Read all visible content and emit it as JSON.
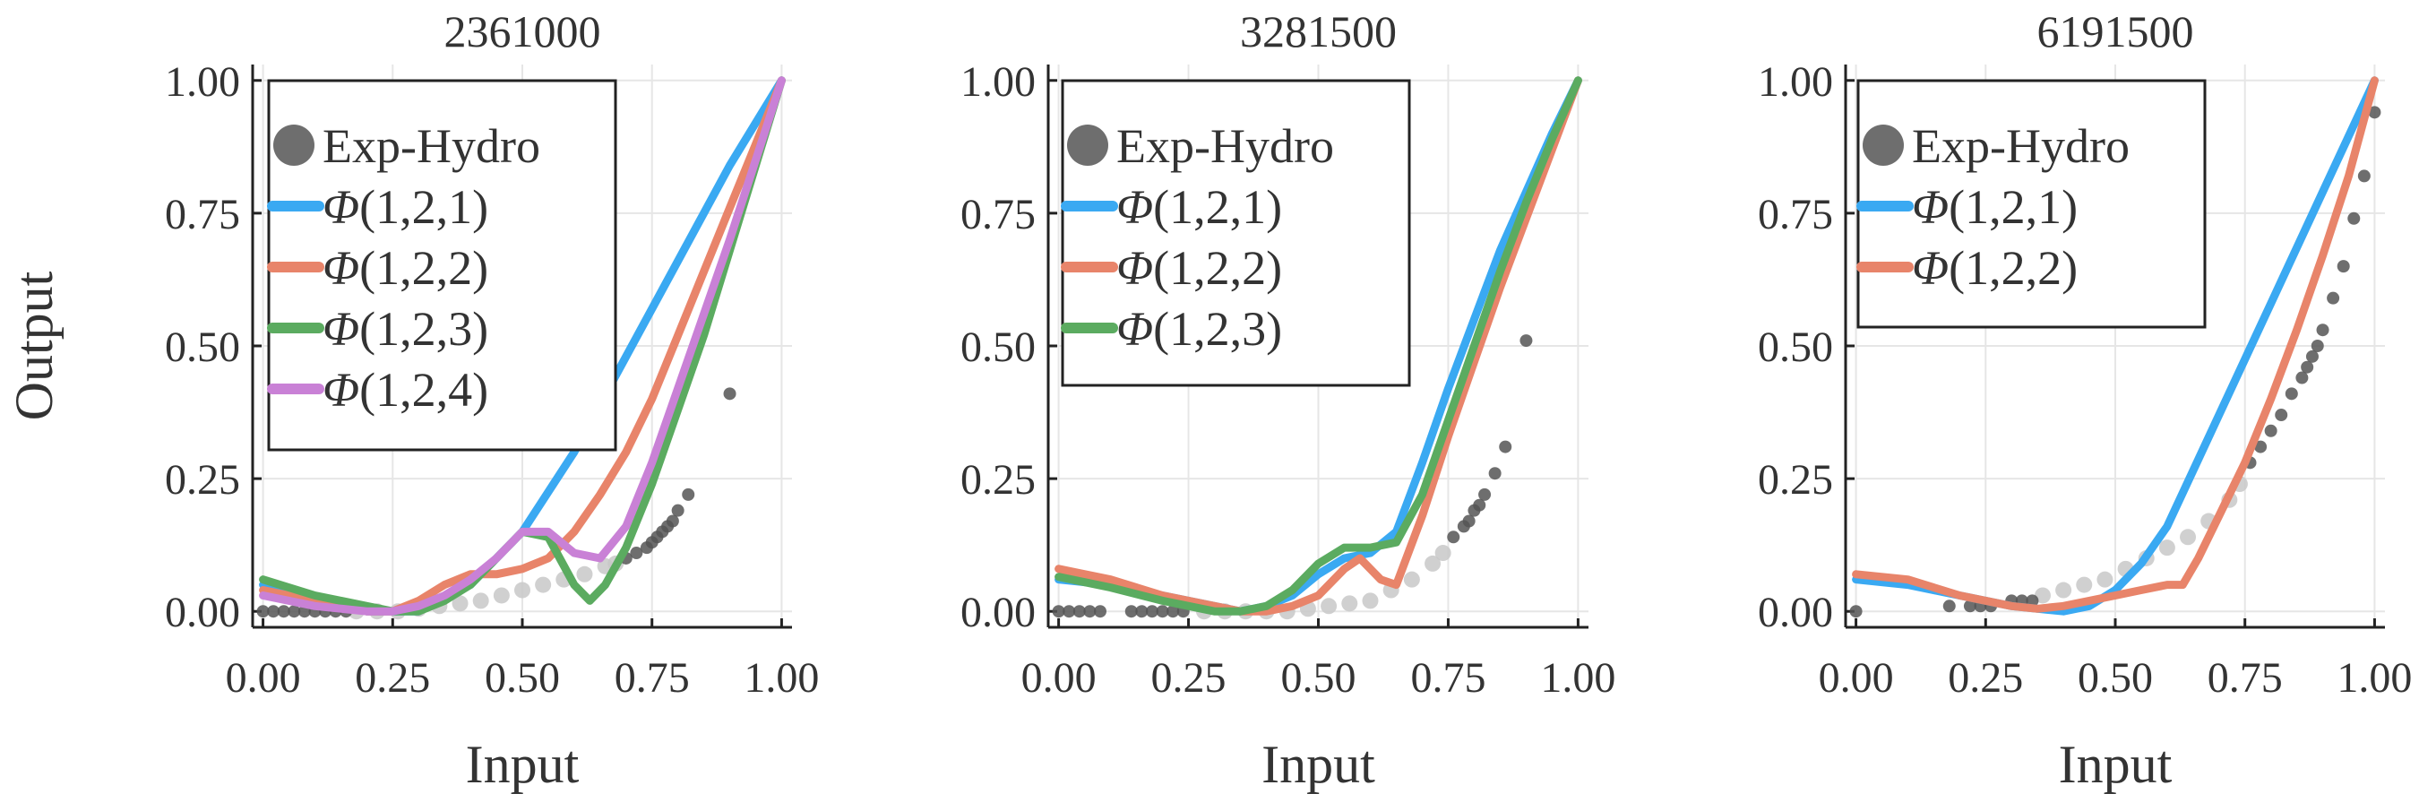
{
  "chart_data": [
    {
      "type": "line",
      "title": "2361000",
      "xlabel": "Input",
      "ylabel": "Output",
      "xlim": [
        -0.02,
        1.02
      ],
      "ylim": [
        -0.03,
        1.03
      ],
      "x_ticks": [
        "0.00",
        "0.25",
        "0.50",
        "0.75",
        "1.00"
      ],
      "y_ticks": [
        "0.00",
        "0.25",
        "0.50",
        "0.75",
        "1.00"
      ],
      "grid": true,
      "legend_position": "top-left",
      "legend": [
        "Exp-Hydro",
        "Φ(1,2,1)",
        "Φ(1,2,2)",
        "Φ(1,2,3)",
        "Φ(1,2,4)"
      ],
      "scatter": {
        "name": "Exp-Hydro",
        "color": "#555555",
        "dark_x": [
          0.0,
          0.02,
          0.04,
          0.06,
          0.08,
          0.1,
          0.12,
          0.14,
          0.16,
          0.7,
          0.72,
          0.74,
          0.75,
          0.76,
          0.77,
          0.78,
          0.79,
          0.8,
          0.82,
          0.9
        ],
        "dark_y": [
          0.0,
          0.0,
          0.0,
          0.0,
          0.0,
          0.0,
          0.0,
          0.0,
          0.0,
          0.1,
          0.11,
          0.12,
          0.13,
          0.14,
          0.15,
          0.16,
          0.17,
          0.19,
          0.22,
          0.41
        ],
        "light_x": [
          0.18,
          0.22,
          0.26,
          0.3,
          0.34,
          0.38,
          0.42,
          0.46,
          0.5,
          0.54,
          0.58,
          0.62,
          0.66,
          0.68
        ],
        "light_y": [
          0.0,
          0.0,
          0.0,
          0.005,
          0.01,
          0.015,
          0.02,
          0.03,
          0.04,
          0.05,
          0.06,
          0.07,
          0.085,
          0.09
        ]
      },
      "series": [
        {
          "name": "Φ(1,2,1)",
          "color": "#3aa9f2",
          "x": [
            0.0,
            0.1,
            0.2,
            0.3,
            0.4,
            0.5,
            0.6,
            0.7,
            0.8,
            0.9,
            1.0
          ],
          "y": [
            0.05,
            0.02,
            0.0,
            0.0,
            0.05,
            0.15,
            0.3,
            0.48,
            0.66,
            0.84,
            1.0
          ]
        },
        {
          "name": "Φ(1,2,2)",
          "color": "#e8846a",
          "x": [
            0.0,
            0.1,
            0.2,
            0.25,
            0.3,
            0.35,
            0.4,
            0.45,
            0.5,
            0.55,
            0.6,
            0.65,
            0.7,
            0.75,
            0.8,
            0.85,
            0.9,
            0.95,
            1.0
          ],
          "y": [
            0.04,
            0.02,
            0.0,
            0.0,
            0.02,
            0.05,
            0.07,
            0.07,
            0.08,
            0.1,
            0.15,
            0.22,
            0.3,
            0.4,
            0.52,
            0.64,
            0.76,
            0.88,
            1.0
          ]
        },
        {
          "name": "Φ(1,2,3)",
          "color": "#5bab60",
          "x": [
            0.0,
            0.1,
            0.2,
            0.25,
            0.3,
            0.35,
            0.4,
            0.45,
            0.5,
            0.55,
            0.6,
            0.63,
            0.66,
            0.7,
            0.75,
            0.8,
            0.85,
            0.9,
            0.95,
            1.0
          ],
          "y": [
            0.06,
            0.03,
            0.01,
            0.0,
            0.0,
            0.02,
            0.05,
            0.1,
            0.15,
            0.14,
            0.05,
            0.02,
            0.05,
            0.12,
            0.24,
            0.38,
            0.52,
            0.68,
            0.84,
            1.0
          ]
        },
        {
          "name": "Φ(1,2,4)",
          "color": "#c981d6",
          "x": [
            0.0,
            0.1,
            0.2,
            0.25,
            0.3,
            0.35,
            0.4,
            0.45,
            0.5,
            0.55,
            0.6,
            0.65,
            0.7,
            0.75,
            0.8,
            0.85,
            0.9,
            0.95,
            1.0
          ],
          "y": [
            0.03,
            0.01,
            0.0,
            0.0,
            0.01,
            0.03,
            0.06,
            0.1,
            0.15,
            0.15,
            0.11,
            0.1,
            0.16,
            0.28,
            0.42,
            0.56,
            0.7,
            0.85,
            1.0
          ]
        }
      ]
    },
    {
      "type": "line",
      "title": "3281500",
      "xlabel": "Input",
      "ylabel": "",
      "xlim": [
        -0.02,
        1.02
      ],
      "ylim": [
        -0.03,
        1.03
      ],
      "x_ticks": [
        "0.00",
        "0.25",
        "0.50",
        "0.75",
        "1.00"
      ],
      "y_ticks": [
        "0.00",
        "0.25",
        "0.50",
        "0.75",
        "1.00"
      ],
      "grid": true,
      "legend_position": "top-left",
      "legend": [
        "Exp-Hydro",
        "Φ(1,2,1)",
        "Φ(1,2,2)",
        "Φ(1,2,3)"
      ],
      "scatter": {
        "name": "Exp-Hydro",
        "color": "#555555",
        "dark_x": [
          0.0,
          0.02,
          0.04,
          0.06,
          0.08,
          0.14,
          0.16,
          0.18,
          0.2,
          0.22,
          0.24,
          0.76,
          0.78,
          0.79,
          0.8,
          0.81,
          0.82,
          0.84,
          0.86,
          0.9
        ],
        "dark_y": [
          0.0,
          0.0,
          0.0,
          0.0,
          0.0,
          0.0,
          0.0,
          0.0,
          0.0,
          0.0,
          0.0,
          0.14,
          0.16,
          0.17,
          0.19,
          0.2,
          0.22,
          0.26,
          0.31,
          0.51
        ],
        "light_x": [
          0.28,
          0.32,
          0.36,
          0.4,
          0.44,
          0.48,
          0.52,
          0.56,
          0.6,
          0.64,
          0.68,
          0.72,
          0.74
        ],
        "light_y": [
          0.0,
          0.0,
          0.0,
          0.0,
          0.0,
          0.005,
          0.01,
          0.015,
          0.02,
          0.04,
          0.06,
          0.09,
          0.11
        ]
      },
      "series": [
        {
          "name": "Φ(1,2,1)",
          "color": "#3aa9f2",
          "x": [
            0.0,
            0.1,
            0.2,
            0.3,
            0.35,
            0.4,
            0.45,
            0.5,
            0.55,
            0.6,
            0.65,
            0.7,
            0.75,
            0.8,
            0.85,
            0.9,
            0.95,
            1.0
          ],
          "y": [
            0.06,
            0.05,
            0.03,
            0.01,
            0.0,
            0.01,
            0.03,
            0.07,
            0.1,
            0.11,
            0.15,
            0.28,
            0.42,
            0.55,
            0.68,
            0.79,
            0.9,
            1.0
          ]
        },
        {
          "name": "Φ(1,2,2)",
          "color": "#e8846a",
          "x": [
            0.0,
            0.1,
            0.2,
            0.3,
            0.35,
            0.4,
            0.45,
            0.5,
            0.55,
            0.58,
            0.62,
            0.65,
            0.7,
            0.75,
            0.8,
            0.85,
            0.9,
            0.95,
            1.0
          ],
          "y": [
            0.08,
            0.06,
            0.03,
            0.01,
            0.0,
            0.0,
            0.01,
            0.03,
            0.08,
            0.1,
            0.06,
            0.05,
            0.18,
            0.33,
            0.47,
            0.61,
            0.74,
            0.87,
            1.0
          ]
        },
        {
          "name": "Φ(1,2,3)",
          "color": "#5bab60",
          "x": [
            0.0,
            0.1,
            0.2,
            0.3,
            0.35,
            0.4,
            0.45,
            0.5,
            0.55,
            0.6,
            0.65,
            0.7,
            0.75,
            0.8,
            0.85,
            0.9,
            0.95,
            1.0
          ],
          "y": [
            0.065,
            0.045,
            0.02,
            0.0,
            0.0,
            0.01,
            0.04,
            0.09,
            0.12,
            0.12,
            0.13,
            0.22,
            0.36,
            0.5,
            0.64,
            0.77,
            0.89,
            1.0
          ]
        }
      ]
    },
    {
      "type": "line",
      "title": "6191500",
      "xlabel": "Input",
      "ylabel": "",
      "xlim": [
        -0.02,
        1.02
      ],
      "ylim": [
        -0.03,
        1.03
      ],
      "x_ticks": [
        "0.00",
        "0.25",
        "0.50",
        "0.75",
        "1.00"
      ],
      "y_ticks": [
        "0.00",
        "0.25",
        "0.50",
        "0.75",
        "1.00"
      ],
      "grid": true,
      "legend_position": "top-left",
      "legend": [
        "Exp-Hydro",
        "Φ(1,2,1)",
        "Φ(1,2,2)"
      ],
      "scatter": {
        "name": "Exp-Hydro",
        "color": "#555555",
        "dark_x": [
          0.0,
          0.18,
          0.22,
          0.24,
          0.26,
          0.3,
          0.32,
          0.34,
          0.76,
          0.78,
          0.8,
          0.82,
          0.84,
          0.86,
          0.87,
          0.88,
          0.89,
          0.9,
          0.92,
          0.94,
          0.96,
          0.98,
          1.0
        ],
        "dark_y": [
          0.0,
          0.01,
          0.01,
          0.01,
          0.01,
          0.02,
          0.02,
          0.02,
          0.28,
          0.31,
          0.34,
          0.37,
          0.41,
          0.44,
          0.46,
          0.48,
          0.5,
          0.53,
          0.59,
          0.65,
          0.74,
          0.82,
          0.94
        ],
        "light_x": [
          0.36,
          0.4,
          0.44,
          0.48,
          0.52,
          0.56,
          0.6,
          0.64,
          0.68,
          0.72,
          0.74
        ],
        "light_y": [
          0.03,
          0.04,
          0.05,
          0.06,
          0.08,
          0.1,
          0.12,
          0.14,
          0.17,
          0.21,
          0.24
        ]
      },
      "series": [
        {
          "name": "Φ(1,2,1)",
          "color": "#3aa9f2",
          "x": [
            0.0,
            0.1,
            0.2,
            0.3,
            0.35,
            0.4,
            0.45,
            0.5,
            0.55,
            0.6,
            0.7,
            0.8,
            0.9,
            1.0
          ],
          "y": [
            0.06,
            0.05,
            0.03,
            0.01,
            0.005,
            0.0,
            0.01,
            0.04,
            0.09,
            0.16,
            0.37,
            0.58,
            0.79,
            1.0
          ]
        },
        {
          "name": "Φ(1,2,2)",
          "color": "#e8846a",
          "x": [
            0.0,
            0.1,
            0.2,
            0.3,
            0.35,
            0.4,
            0.45,
            0.5,
            0.55,
            0.6,
            0.63,
            0.66,
            0.7,
            0.75,
            0.8,
            0.85,
            0.9,
            0.95,
            1.0
          ],
          "y": [
            0.07,
            0.06,
            0.03,
            0.01,
            0.005,
            0.01,
            0.02,
            0.03,
            0.04,
            0.05,
            0.05,
            0.1,
            0.18,
            0.28,
            0.4,
            0.53,
            0.67,
            0.82,
            1.0
          ]
        }
      ]
    }
  ]
}
